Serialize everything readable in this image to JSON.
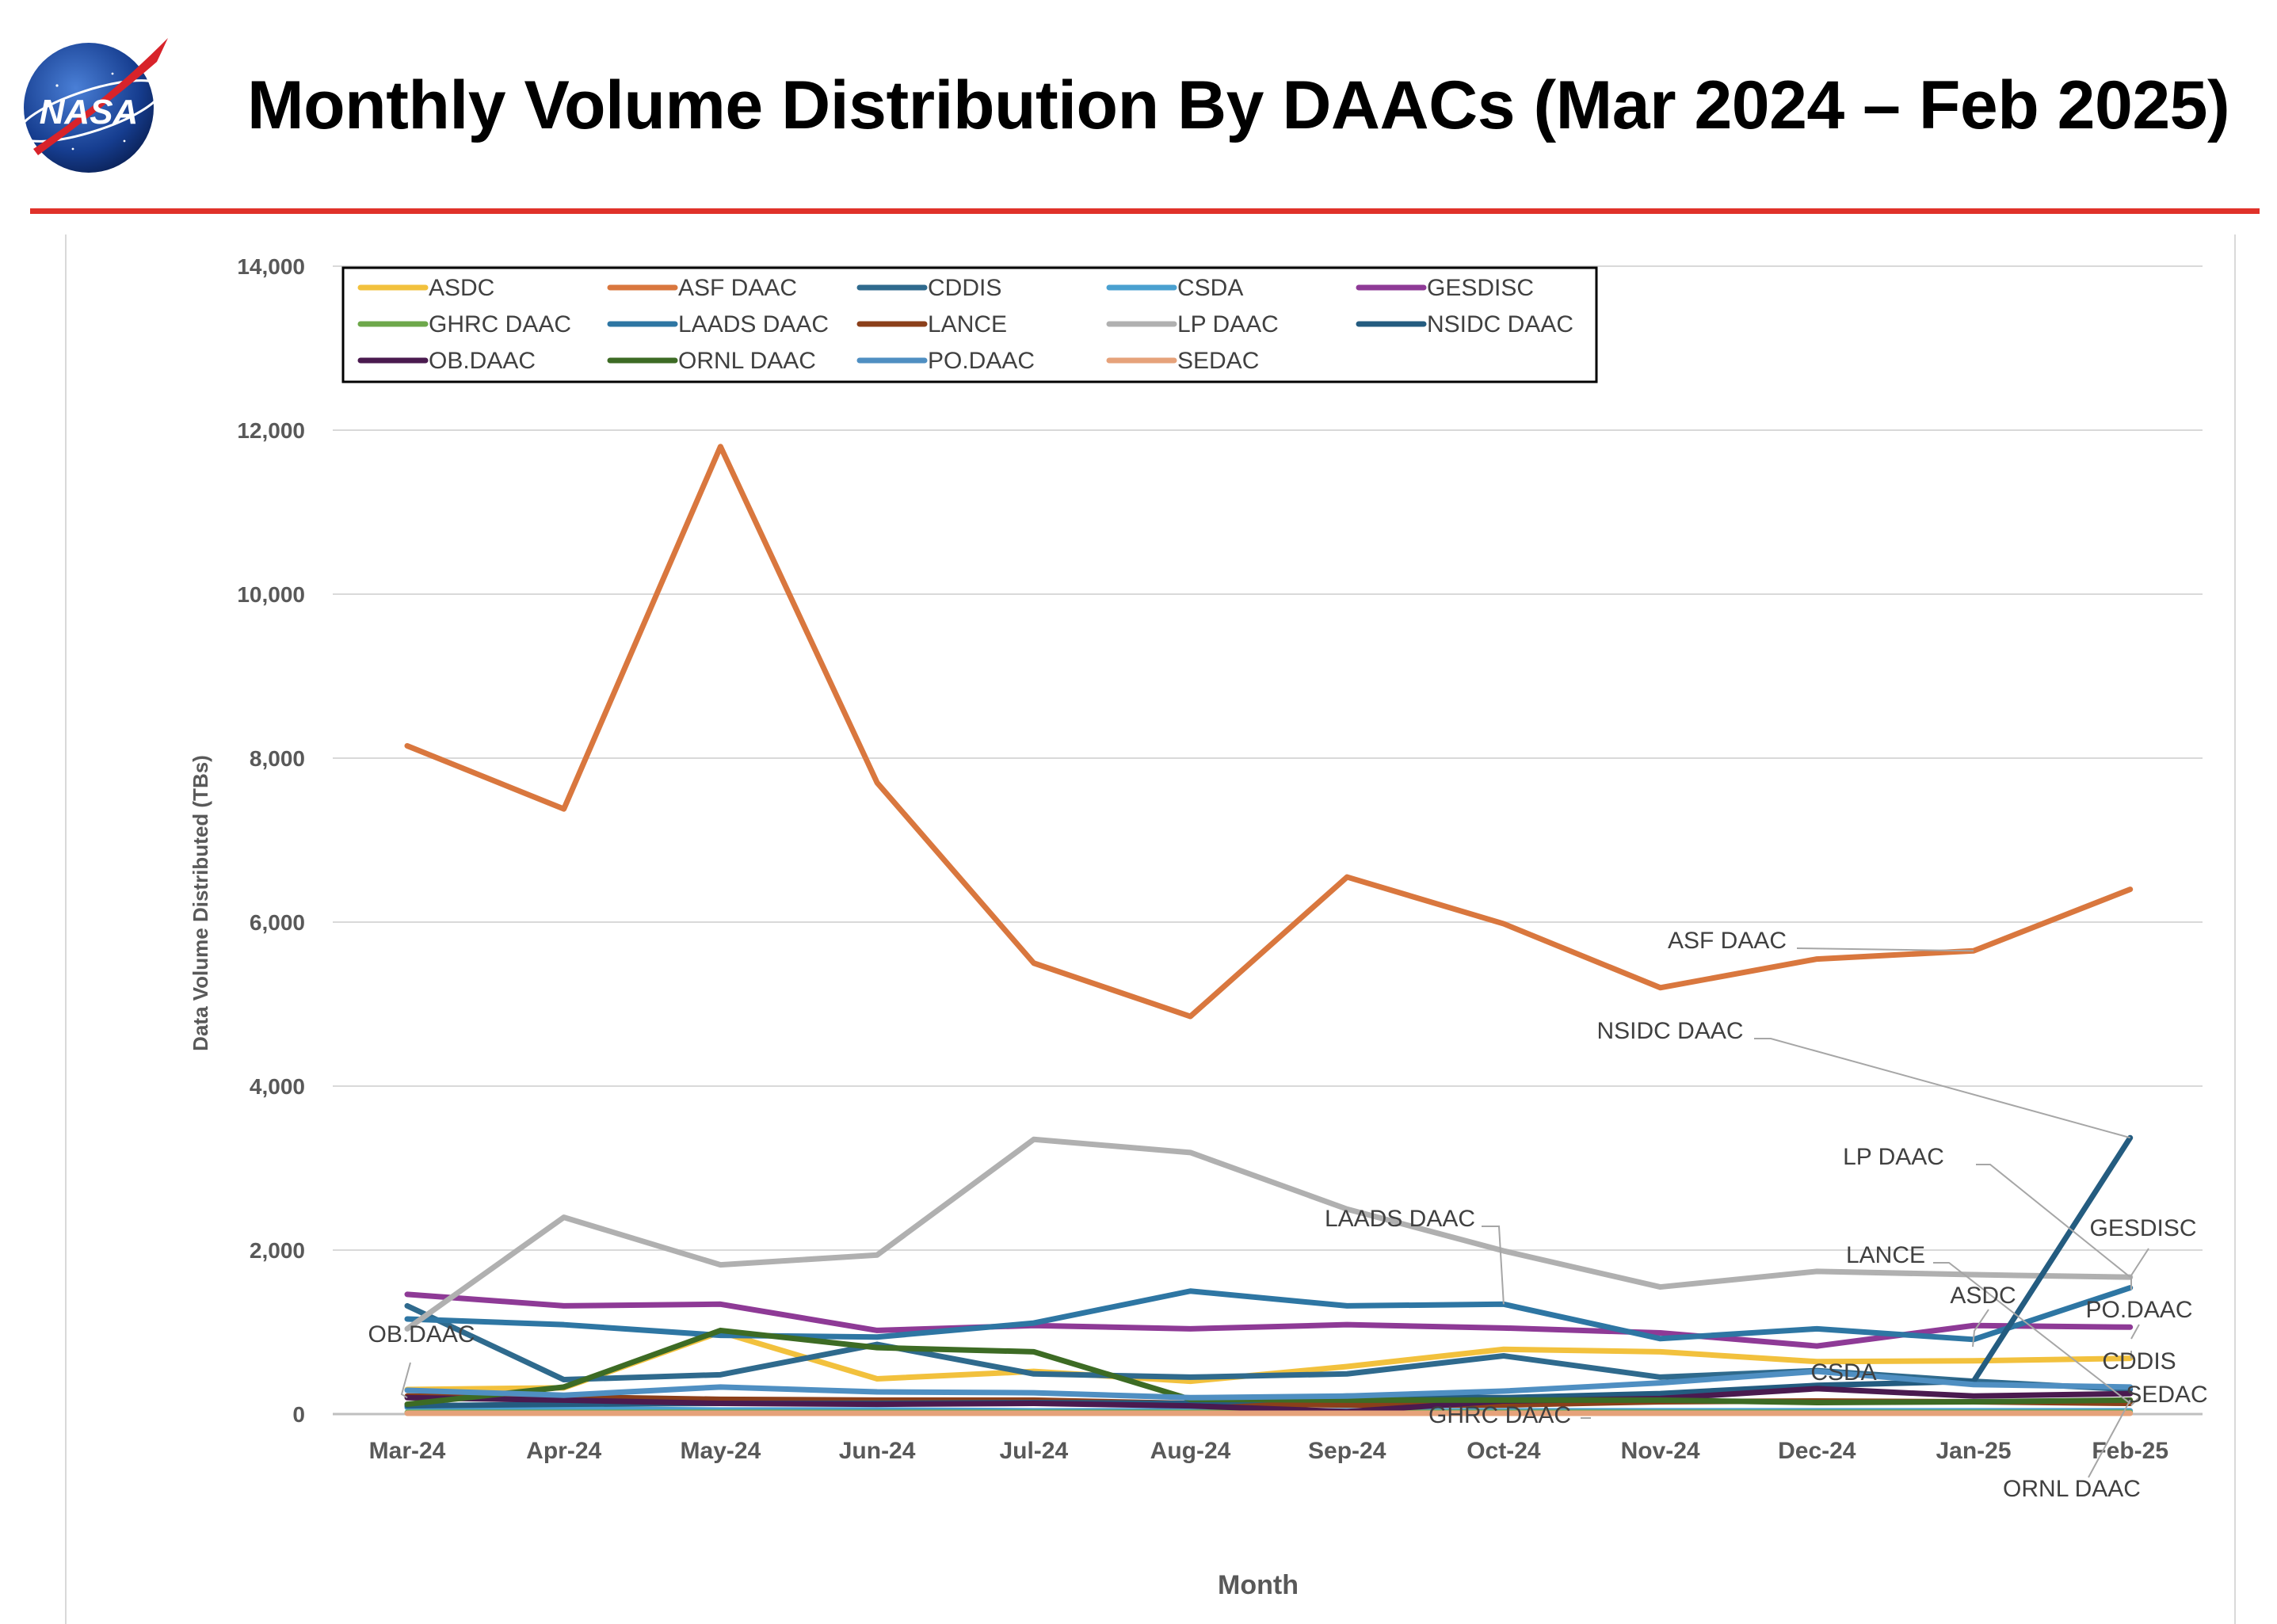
{
  "logo": {
    "text": "NASA"
  },
  "title": "Monthly Volume Distribution By DAACs (Mar 2024 – Feb 2025)",
  "colors": {
    "rule": "#e0322a",
    "gridline": "#d9d9d9",
    "axis_text": "#595959"
  },
  "chart_data": {
    "type": "line",
    "title": "",
    "xlabel": "Month",
    "ylabel": "Data Volume Distributed (TBs)",
    "ylim": [
      0,
      14000
    ],
    "y_ticks": [
      "0",
      "2,000",
      "4,000",
      "6,000",
      "8,000",
      "10,000",
      "12,000",
      "14,000"
    ],
    "categories": [
      "Mar-24",
      "Apr-24",
      "May-24",
      "Jun-24",
      "Jul-24",
      "Aug-24",
      "Sep-24",
      "Oct-24",
      "Nov-24",
      "Dec-24",
      "Jan-25",
      "Feb-25"
    ],
    "grid": true,
    "legend_position": "top-left",
    "series": [
      {
        "name": "ASDC",
        "color": "#f2c13d",
        "values": [
          300,
          320,
          1000,
          430,
          520,
          400,
          580,
          790,
          760,
          640,
          650,
          680
        ]
      },
      {
        "name": "ASF DAAC",
        "color": "#d9773e",
        "values": [
          8150,
          7380,
          11800,
          7700,
          5500,
          4850,
          6550,
          5980,
          5200,
          5550,
          5650,
          6400
        ]
      },
      {
        "name": "CDDIS",
        "color": "#2f6a8d",
        "values": [
          1320,
          420,
          480,
          850,
          490,
          450,
          490,
          710,
          450,
          530,
          400,
          300
        ]
      },
      {
        "name": "CSDA",
        "color": "#4aa0d0",
        "values": [
          80,
          60,
          50,
          50,
          40,
          40,
          40,
          40,
          40,
          40,
          40,
          40
        ]
      },
      {
        "name": "GESDISC",
        "color": "#8e3a96",
        "values": [
          1460,
          1320,
          1340,
          1020,
          1080,
          1040,
          1090,
          1050,
          990,
          830,
          1080,
          1060
        ]
      },
      {
        "name": "GHRC DAAC",
        "color": "#6ea84b",
        "values": [
          20,
          20,
          20,
          20,
          20,
          20,
          20,
          20,
          20,
          20,
          20,
          20
        ]
      },
      {
        "name": "LAADS DAAC",
        "color": "#2e76a3",
        "values": [
          1160,
          1090,
          960,
          940,
          1110,
          1500,
          1320,
          1340,
          920,
          1040,
          910,
          1540
        ]
      },
      {
        "name": "LANCE",
        "color": "#8b3f1a",
        "values": [
          220,
          210,
          180,
          170,
          170,
          130,
          110,
          110,
          150,
          160,
          150,
          130
        ]
      },
      {
        "name": "LP DAAC",
        "color": "#b0b0b0",
        "values": [
          1040,
          2400,
          1820,
          1940,
          3350,
          3190,
          2500,
          1990,
          1550,
          1740,
          1700,
          1670
        ]
      },
      {
        "name": "NSIDC DAAC",
        "color": "#245c80",
        "values": [
          100,
          120,
          130,
          130,
          140,
          130,
          220,
          200,
          250,
          350,
          400,
          3370
        ]
      },
      {
        "name": "OB.DAAC",
        "color": "#4a1a4f",
        "values": [
          200,
          170,
          130,
          120,
          130,
          100,
          30,
          160,
          190,
          310,
          220,
          250
        ]
      },
      {
        "name": "ORNL DAAC",
        "color": "#3d6b24",
        "values": [
          120,
          330,
          1020,
          810,
          760,
          180,
          170,
          170,
          170,
          140,
          150,
          170
        ]
      },
      {
        "name": "PO.DAAC",
        "color": "#4f8fc2",
        "values": [
          290,
          230,
          330,
          270,
          260,
          200,
          220,
          280,
          380,
          520,
          360,
          330
        ]
      },
      {
        "name": "SEDAC",
        "color": "#e6a27a",
        "values": [
          10,
          10,
          10,
          10,
          10,
          10,
          10,
          10,
          10,
          10,
          10,
          10
        ]
      }
    ],
    "annotations": [
      "ASF DAAC",
      "NSIDC DAAC",
      "LP DAAC",
      "LAADS DAAC",
      "GESDISC",
      "LANCE",
      "ASDC",
      "PO.DAAC",
      "CDDIS",
      "SEDAC",
      "CSDA",
      "GHRC DAAC",
      "ORNL DAAC",
      "OB.DAAC"
    ]
  }
}
